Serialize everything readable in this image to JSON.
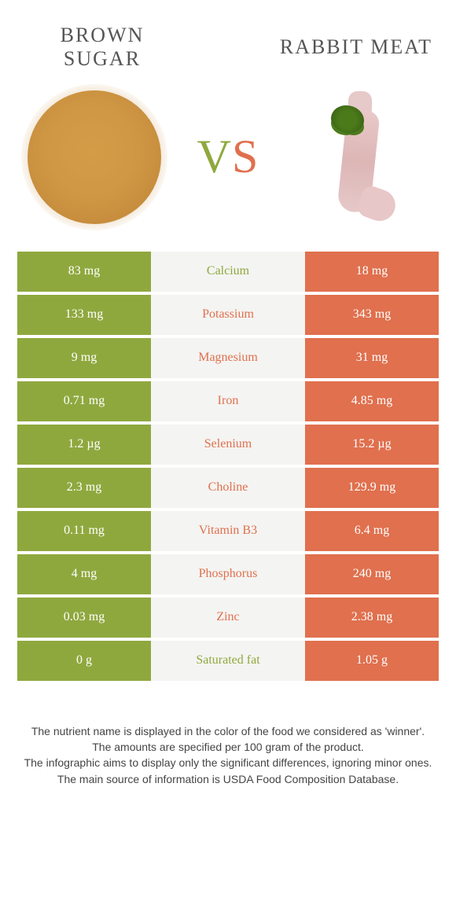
{
  "colors": {
    "green": "#8fa83e",
    "orange": "#e0704e",
    "mid_bg": "#f4f4f2"
  },
  "left_food": {
    "title_line1": "BROWN",
    "title_line2": "SUGAR"
  },
  "right_food": {
    "title": "RABBIT MEAT"
  },
  "vs": {
    "v": "V",
    "s": "S"
  },
  "rows": [
    {
      "left": "83 mg",
      "label": "Calcium",
      "right": "18 mg",
      "winner": "left"
    },
    {
      "left": "133 mg",
      "label": "Potassium",
      "right": "343 mg",
      "winner": "right"
    },
    {
      "left": "9 mg",
      "label": "Magnesium",
      "right": "31 mg",
      "winner": "right"
    },
    {
      "left": "0.71 mg",
      "label": "Iron",
      "right": "4.85 mg",
      "winner": "right"
    },
    {
      "left": "1.2 µg",
      "label": "Selenium",
      "right": "15.2 µg",
      "winner": "right"
    },
    {
      "left": "2.3 mg",
      "label": "Choline",
      "right": "129.9 mg",
      "winner": "right"
    },
    {
      "left": "0.11 mg",
      "label": "Vitamin B3",
      "right": "6.4 mg",
      "winner": "right"
    },
    {
      "left": "4 mg",
      "label": "Phosphorus",
      "right": "240 mg",
      "winner": "right"
    },
    {
      "left": "0.03 mg",
      "label": "Zinc",
      "right": "2.38 mg",
      "winner": "right"
    },
    {
      "left": "0 g",
      "label": "Saturated fat",
      "right": "1.05 g",
      "winner": "left"
    }
  ],
  "footer": {
    "l1": "The nutrient name is displayed in the color of the food we considered as 'winner'.",
    "l2": "The amounts are specified per 100 gram of the product.",
    "l3": "The infographic aims to display only the significant differences, ignoring minor ones.",
    "l4": "The main source of information is USDA Food Composition Database."
  }
}
